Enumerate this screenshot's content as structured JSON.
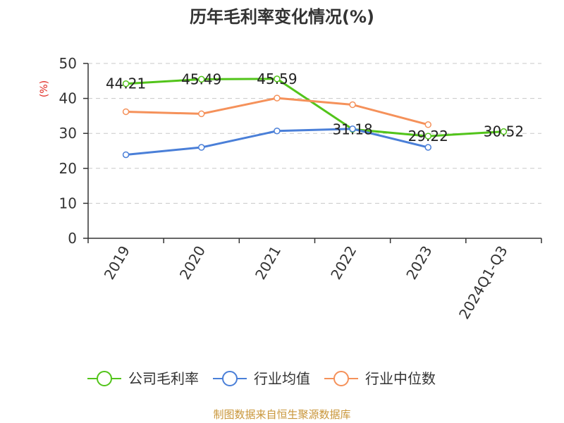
{
  "chart_data": {
    "type": "line",
    "title": "历年毛利率变化情况(%)",
    "ylabel": "(%)",
    "xlabel": "",
    "categories": [
      "2019",
      "2020",
      "2021",
      "2022",
      "2023",
      "2024Q1-Q3"
    ],
    "ylim": [
      0,
      50
    ],
    "yticks": [
      0,
      10,
      20,
      30,
      40,
      50
    ],
    "grid": true,
    "legend_position": "bottom",
    "series": [
      {
        "name": "公司毛利率",
        "color": "#52c41a",
        "values": [
          44.21,
          45.49,
          45.59,
          31.18,
          29.22,
          30.52
        ],
        "labels": [
          "44.21",
          "45.49",
          "45.59",
          "31.18",
          "29.22",
          "30.52"
        ]
      },
      {
        "name": "行业均值",
        "color": "#4a7fd8",
        "values": [
          23.9,
          26.0,
          30.7,
          31.3,
          26.0,
          null
        ]
      },
      {
        "name": "行业中位数",
        "color": "#f5915a",
        "values": [
          36.2,
          35.6,
          40.1,
          38.2,
          32.5,
          null
        ]
      }
    ]
  },
  "source": "制图数据来自恒生聚源数据库"
}
